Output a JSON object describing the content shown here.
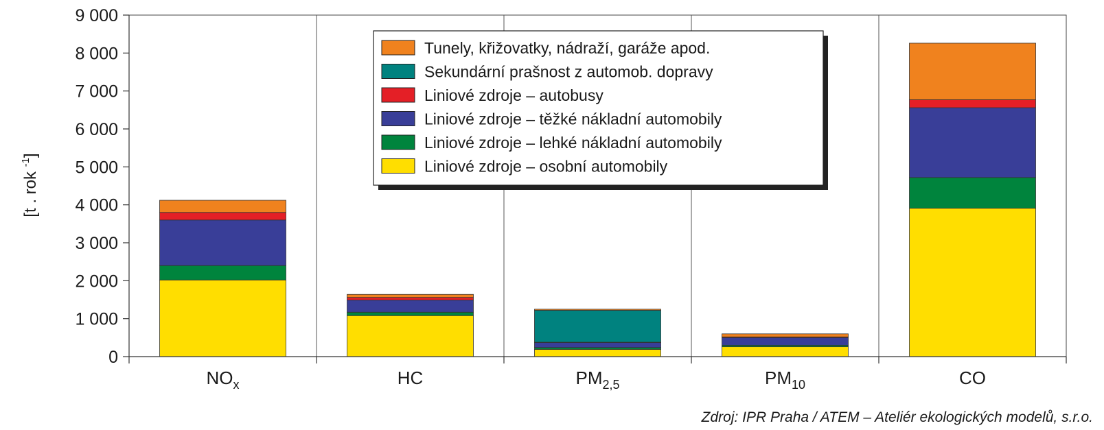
{
  "chart_data": {
    "type": "bar",
    "stacked": true,
    "categories": [
      "NOx",
      "HC",
      "PM2,5",
      "PM10",
      "CO"
    ],
    "category_display": [
      {
        "base": "NO",
        "sub": "x"
      },
      {
        "base": "HC",
        "sub": ""
      },
      {
        "base": "PM",
        "sub": "2,5"
      },
      {
        "base": "PM",
        "sub": "10"
      },
      {
        "base": "CO",
        "sub": ""
      }
    ],
    "series": [
      {
        "name": "Liniové zdroje – osobní automobily",
        "color": "#ffde00",
        "values": [
          2020,
          1080,
          190,
          260,
          3910
        ]
      },
      {
        "name": "Liniové zdroje – lehké nákladní automobily",
        "color": "#00843d",
        "values": [
          380,
          90,
          50,
          40,
          810
        ]
      },
      {
        "name": "Liniové zdroje – těžké nákladní automobily",
        "color": "#393e98",
        "values": [
          1200,
          320,
          130,
          200,
          1840
        ]
      },
      {
        "name": "Liniové zdroje – autobusy",
        "color": "#e41f26",
        "values": [
          200,
          70,
          10,
          20,
          210
        ]
      },
      {
        "name": "Sekundární prašnost z automob. dopravy",
        "color": "#00827f",
        "values": [
          0,
          0,
          840,
          0,
          0
        ]
      },
      {
        "name": "Tunely, křižovatky, nádraží, garáže apod.",
        "color": "#f0821e",
        "values": [
          320,
          80,
          30,
          80,
          1490
        ]
      }
    ],
    "legend_order": [
      5,
      4,
      3,
      2,
      1,
      0
    ],
    "legend_position": "top-center",
    "ylabel": {
      "text": "[t . rok ",
      "sup": "-1",
      "suffix": "]"
    },
    "ylim": [
      0,
      9000
    ],
    "yticks": [
      0,
      1000,
      2000,
      3000,
      4000,
      5000,
      6000,
      7000,
      8000,
      9000
    ],
    "ytick_labels": [
      "0",
      "1 000",
      "2 000",
      "3 000",
      "4 000",
      "5 000",
      "6 000",
      "7 000",
      "8 000",
      "9 000"
    ],
    "grid": {
      "vertical_separators": true,
      "horizontal": false
    }
  },
  "source_note": "Zdroj: IPR Praha / ATEM – Ateliér ekologických modelů, s.r.o."
}
